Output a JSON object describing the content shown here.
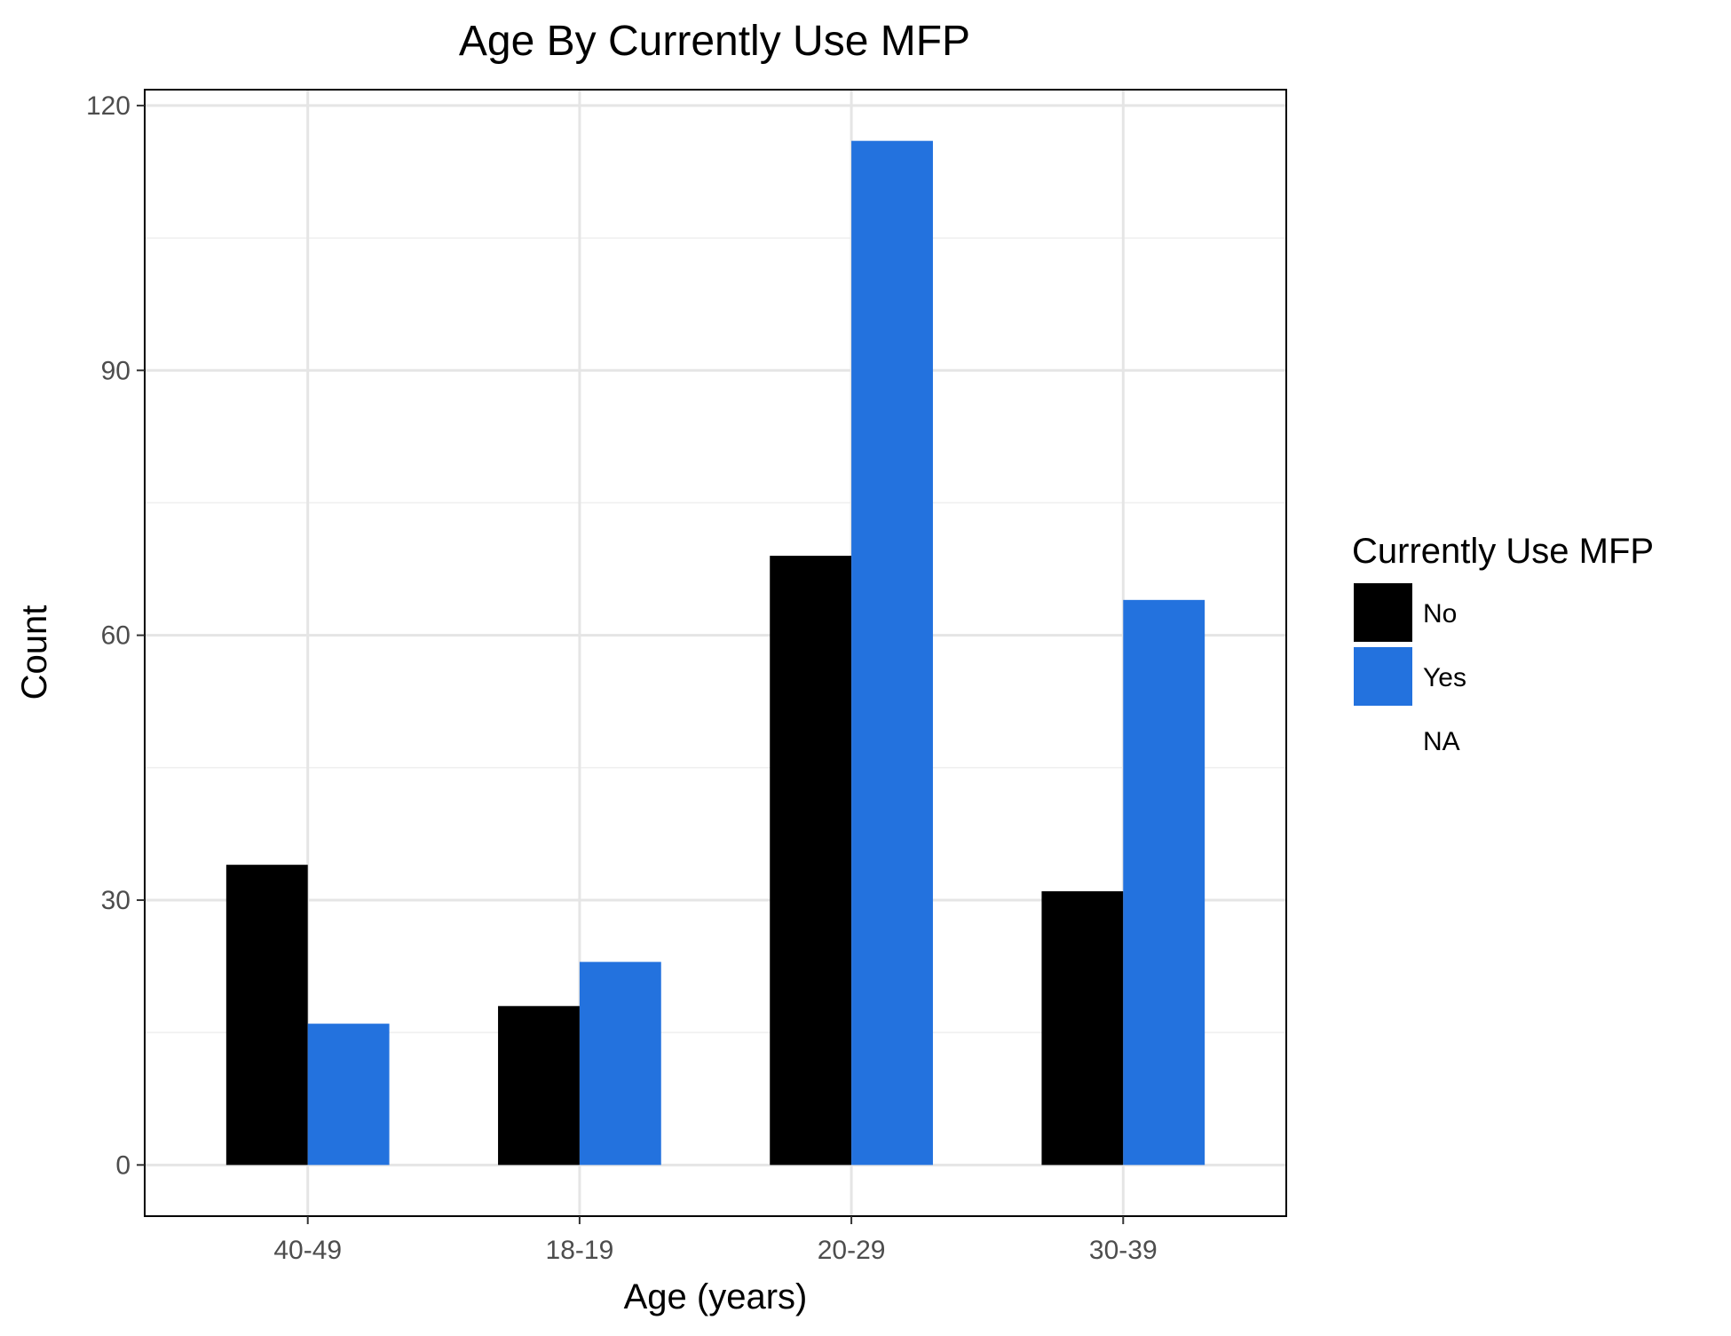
{
  "chart_data": {
    "type": "bar",
    "title": "Age By Currently Use MFP",
    "xlabel": "Age (years)",
    "ylabel": "Count",
    "categories": [
      "40-49",
      "18-19",
      "20-29",
      "30-39"
    ],
    "series": [
      {
        "name": "No",
        "color": "#000000",
        "values": [
          34,
          18,
          69,
          31
        ]
      },
      {
        "name": "Yes",
        "color": "#2372de",
        "values": [
          16,
          23,
          116,
          64
        ]
      }
    ],
    "ylim": [
      -5.8,
      121.8
    ],
    "yticks": [
      0,
      30,
      60,
      90,
      120
    ],
    "ytick_labels": [
      "0",
      "30",
      "60",
      "90",
      "120"
    ],
    "grid": true,
    "legend": {
      "title": "Currently Use MFP",
      "position": "right",
      "entries": [
        {
          "label": "No",
          "color": "#000000"
        },
        {
          "label": "Yes",
          "color": "#2372de"
        },
        {
          "label": "NA",
          "color": ""
        }
      ]
    }
  }
}
